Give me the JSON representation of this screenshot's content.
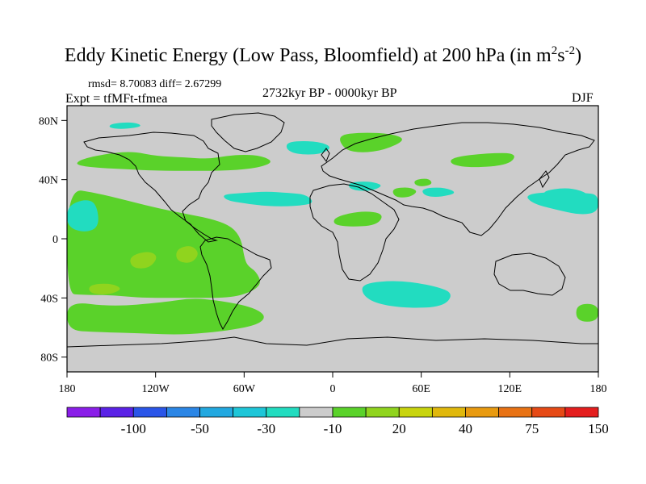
{
  "chart_data": {
    "type": "heatmap",
    "title_main": "Eddy Kinetic Energy (Low Pass, Bloomfield) at 200 hPa (in m",
    "title_sup1": "2",
    "title_mid": "s",
    "title_sup2": "-2",
    "title_end": ")",
    "stats": "rmsd= 8.70083 diff= 2.67299",
    "experiment": "Expt = tfMFt-tfmea",
    "period": "2732kyr BP - 0000kyr BP",
    "season": "DJF",
    "x_axis": {
      "range": [
        -180,
        180
      ],
      "ticks": [
        {
          "value": -180,
          "label": "180"
        },
        {
          "value": -120,
          "label": "120W"
        },
        {
          "value": -60,
          "label": "60W"
        },
        {
          "value": 0,
          "label": "0"
        },
        {
          "value": 60,
          "label": "60E"
        },
        {
          "value": 120,
          "label": "120E"
        },
        {
          "value": 180,
          "label": "180"
        }
      ]
    },
    "y_axis": {
      "range": [
        -90,
        90
      ],
      "ticks": [
        {
          "value": 80,
          "label": "80N"
        },
        {
          "value": 40,
          "label": "40N"
        },
        {
          "value": 0,
          "label": "0"
        },
        {
          "value": -40,
          "label": "40S"
        },
        {
          "value": -80,
          "label": "80S"
        }
      ]
    },
    "colorbar": {
      "colors": [
        "#8a1ee8",
        "#5a22e6",
        "#2a55e8",
        "#2b86e6",
        "#22a8e0",
        "#1ec6d8",
        "#22dcc0",
        "#cccccc",
        "#5ad22a",
        "#90d41e",
        "#c8d40e",
        "#e0b80c",
        "#e89a10",
        "#e87214",
        "#e64a16",
        "#e41e1e"
      ],
      "labels": [
        {
          "boundary": 2,
          "text": "-100"
        },
        {
          "boundary": 4,
          "text": "-50"
        },
        {
          "boundary": 6,
          "text": "-30"
        },
        {
          "boundary": 8,
          "text": "-10"
        },
        {
          "boundary": 10,
          "text": "20"
        },
        {
          "boundary": 12,
          "text": "40"
        },
        {
          "boundary": 14,
          "text": "75"
        },
        {
          "boundary": 16,
          "text": "150"
        }
      ]
    },
    "background_color": "#cccccc",
    "anomaly_regions": [
      {
        "label": "north-atlantic-positive",
        "bin": 8,
        "lonlat": [
          [
            -170,
            54
          ],
          [
            -150,
            58
          ],
          [
            -135,
            59
          ],
          [
            -120,
            56
          ],
          [
            -100,
            55
          ],
          [
            -85,
            54
          ],
          [
            -72,
            56
          ],
          [
            -60,
            57
          ],
          [
            -48,
            56
          ],
          [
            -40,
            52
          ],
          [
            -50,
            48
          ],
          [
            -70,
            46
          ],
          [
            -95,
            46
          ],
          [
            -120,
            46
          ],
          [
            -140,
            47
          ],
          [
            -160,
            48
          ],
          [
            -175,
            50
          ]
        ]
      },
      {
        "label": "subtropical-pacific-positive",
        "bin": 8,
        "lonlat": [
          [
            -180,
            34
          ],
          [
            -160,
            31
          ],
          [
            -140,
            26
          ],
          [
            -120,
            21
          ],
          [
            -100,
            17
          ],
          [
            -80,
            13
          ],
          [
            -68,
            8
          ],
          [
            -62,
            0
          ],
          [
            -60,
            -12
          ],
          [
            -58,
            -18
          ],
          [
            -52,
            -22
          ],
          [
            -48,
            -30
          ],
          [
            -55,
            -36
          ],
          [
            -70,
            -40
          ],
          [
            -100,
            -40
          ],
          [
            -130,
            -40
          ],
          [
            -150,
            -38
          ],
          [
            -170,
            -38
          ],
          [
            -180,
            -37
          ]
        ]
      },
      {
        "label": "southern-ocean-positive",
        "bin": 8,
        "lonlat": [
          [
            -180,
            -42
          ],
          [
            -150,
            -46
          ],
          [
            -115,
            -43
          ],
          [
            -95,
            -40
          ],
          [
            -75,
            -42
          ],
          [
            -55,
            -46
          ],
          [
            -45,
            -52
          ],
          [
            -50,
            -58
          ],
          [
            -70,
            -62
          ],
          [
            -100,
            -65
          ],
          [
            -130,
            -64
          ],
          [
            -160,
            -63
          ],
          [
            -180,
            -62
          ]
        ]
      },
      {
        "label": "tropical-pacific-yellow-1",
        "bin": 9,
        "lonlat": [
          [
            -138,
            -12
          ],
          [
            -125,
            -8
          ],
          [
            -118,
            -12
          ],
          [
            -124,
            -20
          ],
          [
            -136,
            -20
          ]
        ]
      },
      {
        "label": "tropical-pacific-yellow-2",
        "bin": 9,
        "lonlat": [
          [
            -106,
            -7
          ],
          [
            -96,
            -4
          ],
          [
            -90,
            -10
          ],
          [
            -96,
            -17
          ],
          [
            -106,
            -15
          ]
        ]
      },
      {
        "label": "south-pacific-yellow",
        "bin": 9,
        "lonlat": [
          [
            -165,
            -31
          ],
          [
            -150,
            -30
          ],
          [
            -142,
            -34
          ],
          [
            -152,
            -38
          ],
          [
            -165,
            -37
          ]
        ]
      },
      {
        "label": "north-atlantic-negative",
        "bin": 6,
        "lonlat": [
          [
            -75,
            30
          ],
          [
            -60,
            31
          ],
          [
            -45,
            32
          ],
          [
            -30,
            31
          ],
          [
            -18,
            30
          ],
          [
            -12,
            24
          ],
          [
            -25,
            22
          ],
          [
            -45,
            22
          ],
          [
            -60,
            24
          ],
          [
            -72,
            26
          ]
        ]
      },
      {
        "label": "north-pacific-negative",
        "bin": 6,
        "lonlat": [
          [
            -180,
            22
          ],
          [
            -168,
            27
          ],
          [
            -160,
            24
          ],
          [
            -158,
            8
          ],
          [
            -168,
            4
          ],
          [
            -180,
            8
          ]
        ]
      },
      {
        "label": "nw-pacific-negative",
        "bin": 6,
        "lonlat": [
          [
            130,
            30
          ],
          [
            150,
            32
          ],
          [
            170,
            31
          ],
          [
            180,
            30
          ],
          [
            180,
            18
          ],
          [
            168,
            16
          ],
          [
            150,
            20
          ],
          [
            135,
            24
          ]
        ]
      },
      {
        "label": "south-indian-negative",
        "bin": 6,
        "lonlat": [
          [
            20,
            -30
          ],
          [
            45,
            -28
          ],
          [
            70,
            -32
          ],
          [
            82,
            -37
          ],
          [
            75,
            -46
          ],
          [
            50,
            -47
          ],
          [
            30,
            -44
          ],
          [
            20,
            -38
          ]
        ]
      },
      {
        "label": "north-atlantic-high-negative",
        "bin": 6,
        "lonlat": [
          [
            -30,
            66
          ],
          [
            -10,
            66
          ],
          [
            0,
            62
          ],
          [
            -8,
            57
          ],
          [
            -25,
            57
          ],
          [
            -32,
            61
          ]
        ]
      },
      {
        "label": "mediterranean-negative",
        "bin": 6,
        "lonlat": [
          [
            10,
            38
          ],
          [
            25,
            39
          ],
          [
            35,
            36
          ],
          [
            25,
            32
          ],
          [
            12,
            33
          ]
        ]
      },
      {
        "label": "south-asia-negative",
        "bin": 6,
        "lonlat": [
          [
            60,
            34
          ],
          [
            75,
            35
          ],
          [
            85,
            31
          ],
          [
            72,
            28
          ],
          [
            62,
            29
          ]
        ]
      },
      {
        "label": "pacific-center-negative",
        "bin": 6,
        "lonlat": [
          [
            140,
            32
          ],
          [
            160,
            35
          ],
          [
            175,
            30
          ],
          [
            168,
            25
          ],
          [
            150,
            26
          ]
        ]
      },
      {
        "label": "africa-positive",
        "bin": 8,
        "lonlat": [
          [
            2,
            15
          ],
          [
            20,
            19
          ],
          [
            35,
            17
          ],
          [
            30,
            9
          ],
          [
            10,
            8
          ],
          [
            0,
            10
          ]
        ]
      },
      {
        "label": "europe-positive",
        "bin": 8,
        "lonlat": [
          [
            3,
            70
          ],
          [
            20,
            72
          ],
          [
            40,
            71
          ],
          [
            50,
            67
          ],
          [
            35,
            60
          ],
          [
            20,
            58
          ],
          [
            8,
            60
          ]
        ]
      },
      {
        "label": "siberia-positive",
        "bin": 8,
        "lonlat": [
          [
            80,
            55
          ],
          [
            105,
            58
          ],
          [
            125,
            58
          ],
          [
            120,
            50
          ],
          [
            95,
            48
          ],
          [
            80,
            50
          ]
        ]
      },
      {
        "label": "middle-east-positive",
        "bin": 8,
        "lonlat": [
          [
            40,
            34
          ],
          [
            52,
            35
          ],
          [
            58,
            32
          ],
          [
            52,
            28
          ],
          [
            42,
            28
          ]
        ]
      },
      {
        "label": "central-asia-positive",
        "bin": 8,
        "lonlat": [
          [
            56,
            40
          ],
          [
            65,
            41
          ],
          [
            68,
            37
          ],
          [
            60,
            35
          ],
          [
            55,
            37
          ]
        ]
      },
      {
        "label": "south-pacific-east-positive",
        "bin": 8,
        "lonlat": [
          [
            165,
            -44
          ],
          [
            180,
            -44
          ],
          [
            180,
            -56
          ],
          [
            165,
            -56
          ]
        ]
      },
      {
        "label": "arctic-patch",
        "bin": 6,
        "lonlat": [
          [
            -150,
            78
          ],
          [
            -135,
            79
          ],
          [
            -128,
            76
          ],
          [
            -142,
            74
          ],
          [
            -152,
            75
          ]
        ]
      }
    ]
  }
}
